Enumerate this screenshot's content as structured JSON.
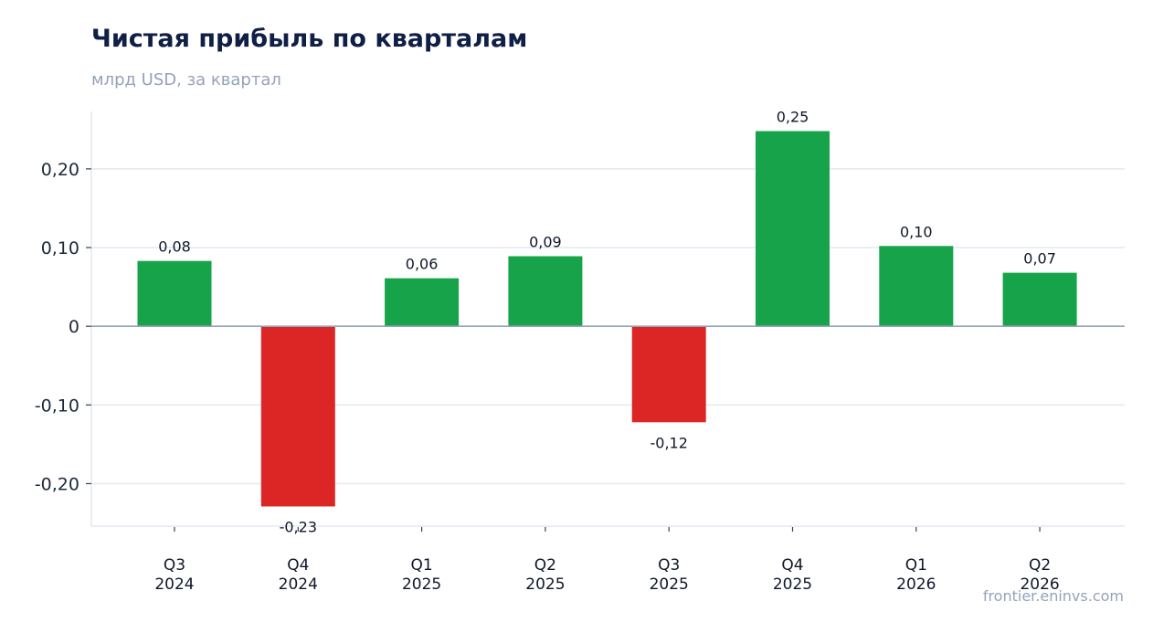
{
  "chart_data": {
    "type": "bar",
    "title": "Чистая прибыль по кварталам",
    "subtitle": "млрд USD, за квартал",
    "categories": [
      [
        "Q3",
        "2024"
      ],
      [
        "Q4",
        "2024"
      ],
      [
        "Q1",
        "2025"
      ],
      [
        "Q2",
        "2025"
      ],
      [
        "Q3",
        "2025"
      ],
      [
        "Q4",
        "2025"
      ],
      [
        "Q1",
        "2026"
      ],
      [
        "Q2",
        "2026"
      ]
    ],
    "values": [
      0.083,
      -0.229,
      0.061,
      0.089,
      -0.122,
      0.248,
      0.102,
      0.068
    ],
    "data_labels": [
      "0,08",
      "-0,23",
      "0,06",
      "0,09",
      "-0,12",
      "0,25",
      "0,10",
      "0,07"
    ],
    "ylim": [
      -0.254,
      0.273
    ],
    "yticks": [
      0.2,
      0.1,
      0,
      -0.1,
      -0.2
    ],
    "ytick_labels": [
      "0,20",
      "0,10",
      "0",
      "-0,10",
      "-0,20"
    ],
    "grid": true,
    "xlabel": "",
    "ylabel": "",
    "colors": {
      "positive": "#16a34a",
      "negative": "#dc2626",
      "grid": "#e2e8f0",
      "zero_line": "#94a3b8"
    }
  },
  "footer": {
    "source": "frontier.eninvs.com"
  }
}
